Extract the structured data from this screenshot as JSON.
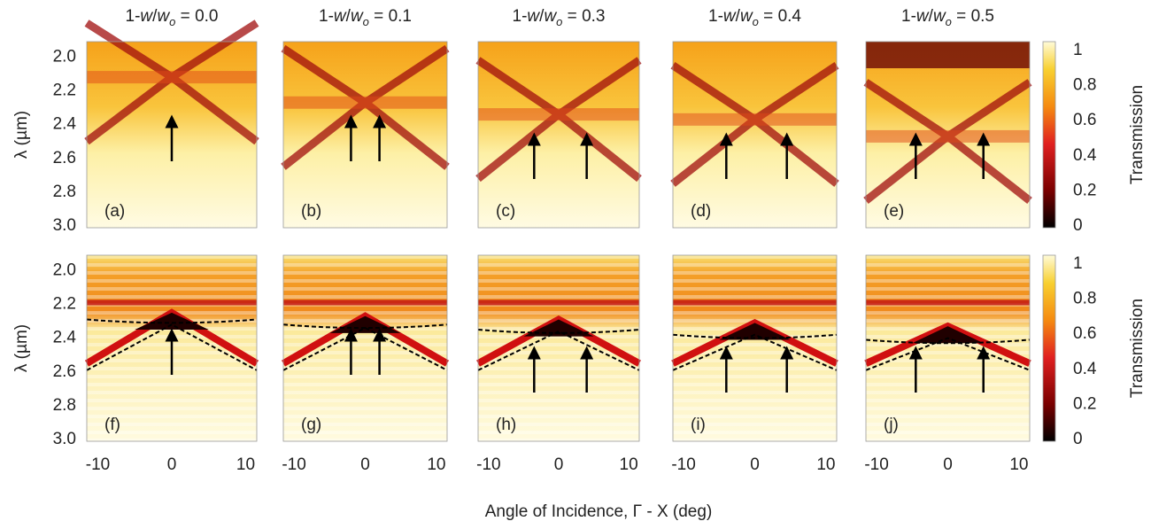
{
  "figure": {
    "title_parts": {
      "lead": "1-",
      "var": "w",
      "slash": "/",
      "sub": "o",
      "eq": " = "
    },
    "column_values": [
      "0.0",
      "0.1",
      "0.3",
      "0.4",
      "0.5"
    ],
    "panel_labels": [
      [
        "(a)",
        "(b)",
        "(c)",
        "(d)",
        "(e)"
      ],
      [
        "(f)",
        "(g)",
        "(h)",
        "(i)",
        "(j)"
      ]
    ],
    "y_label": "λ (µm)",
    "y_ticks": [
      "2.0",
      "2.2",
      "2.4",
      "2.6",
      "2.8",
      "3.0"
    ],
    "x_ticks": [
      "-10",
      "0",
      "10"
    ],
    "x_label": "Angle of Incidence, Γ - X (deg)",
    "colorbar_ticks": [
      "1",
      "0.8",
      "0.6",
      "0.4",
      "0.2",
      "0"
    ],
    "colorbar_label": "Transmission"
  }
}
